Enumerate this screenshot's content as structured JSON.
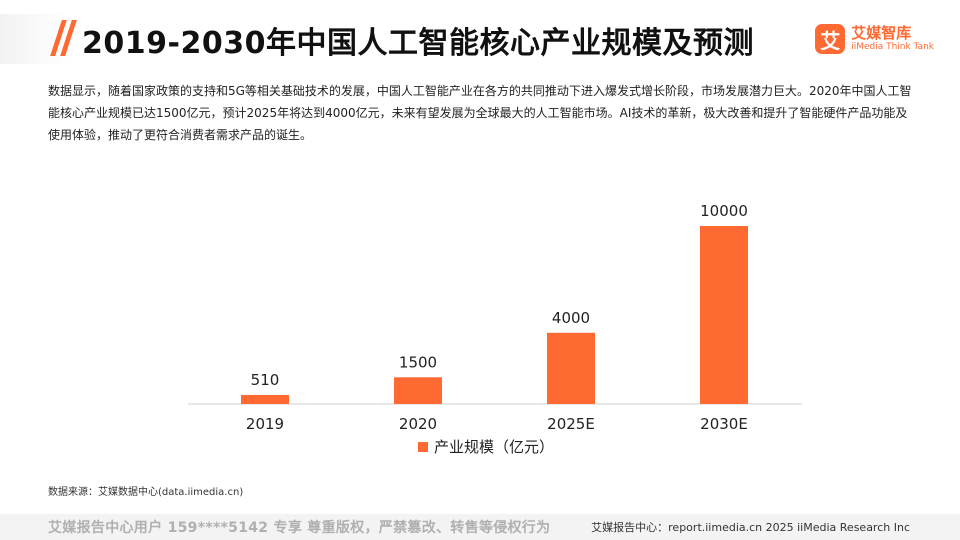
{
  "header": {
    "title": "2019-2030年中国人工智能核心产业规模及预测"
  },
  "logo": {
    "mark": "艾",
    "name_cn": "艾媒智库",
    "name_en": "iiMedia Think Tank"
  },
  "description": "数据显示，随着国家政策的支持和5G等相关基础技术的发展，中国人工智能产业在各方的共同推动下进入爆发式增长阶段，市场发展潜力巨大。2020年中国人工智能核心产业规模已达1500亿元，预计2025年将达到4000亿元，未来有望发展为全球最大的人工智能市场。AI技术的革新，极大改善和提升了智能硬件产品功能及使用体验，推动了更符合消费者需求产品的诞生。",
  "chart_data": {
    "type": "bar",
    "title": "2019-2030年中国人工智能核心产业规模及预测",
    "categories": [
      "2019",
      "2020",
      "2025E",
      "2030E"
    ],
    "series": [
      {
        "name": "产业规模（亿元）",
        "values": [
          510,
          1500,
          4000,
          10000
        ]
      }
    ],
    "data_labels": [
      "510",
      "1500",
      "4000",
      "10000"
    ],
    "xlabel": "",
    "ylabel": "",
    "ylim": [
      0,
      10000
    ],
    "grid": false,
    "legend_position": "bottom-center",
    "color": "#ff6a33"
  },
  "source": "数据来源：艾媒数据中心(data.iimedia.cn)",
  "footer": {
    "left": "艾媒报告中心用户 159****5142 专享 尊重版权，严禁篡改、转售等侵权行为",
    "right": "艾媒报告中心：report.iimedia.cn  2025 iiMedia Research Inc"
  }
}
